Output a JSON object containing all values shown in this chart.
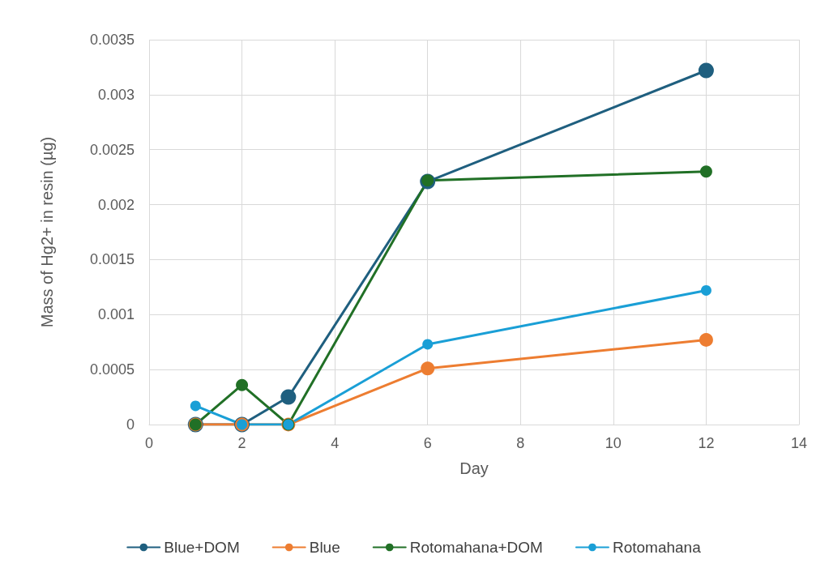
{
  "chart_data": {
    "type": "line",
    "xlabel": "Day",
    "ylabel": "Mass of Hg2+ in resin (µg)",
    "x": [
      1,
      2,
      3,
      6,
      12
    ],
    "series": [
      {
        "name": "Blue+DOM",
        "color": "#1f5f7f",
        "values": [
          0,
          0,
          0.00025,
          0.00221,
          0.00322
        ]
      },
      {
        "name": "Blue",
        "color": "#ed7d31",
        "values": [
          0,
          0,
          0,
          0.00051,
          0.00077
        ]
      },
      {
        "name": "Rotomahana+DOM",
        "color": "#217026",
        "values": [
          0,
          0.00036,
          0,
          0.00222,
          0.0023
        ]
      },
      {
        "name": "Rotomahana",
        "color": "#1a9fd6",
        "values": [
          0.00017,
          0,
          0,
          0.00073,
          0.00122
        ]
      }
    ],
    "xlim": [
      0,
      14
    ],
    "xticks": [
      0,
      2,
      4,
      6,
      8,
      10,
      12,
      14
    ],
    "ylim": [
      0,
      0.0035
    ],
    "yticks": [
      0,
      0.0005,
      0.001,
      0.0015,
      0.002,
      0.0025,
      0.003,
      0.0035
    ],
    "grid": true,
    "legend": "bottom",
    "marker": "circle",
    "line_style": "solid"
  }
}
